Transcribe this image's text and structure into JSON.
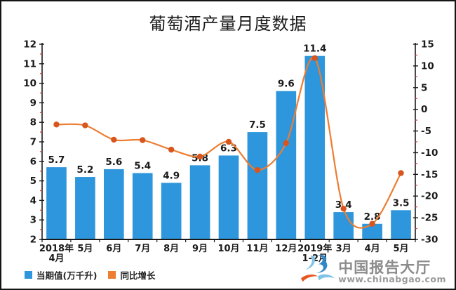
{
  "title": "葡萄酒产量月度数据",
  "legend": {
    "bar_label": "当期值(万千升)",
    "line_label": "同比增长"
  },
  "watermark": {
    "brand": "中国报告大厅",
    "url": "www.chinabgao.com"
  },
  "colors": {
    "bar": "#2E96DC",
    "line": "#ED7D31",
    "marker": "#D8551D",
    "axis": "#1a1a1a",
    "minor_tick": "#E04040",
    "text": "#1a1a1a",
    "watermark_gray": "#8c8c8c",
    "logo_blue_dark": "#2F88C9",
    "logo_blue_light": "#7FC4E6",
    "logo_orange": "#E8561E"
  },
  "chart_data": {
    "type": "bar+line combo",
    "title": "葡萄酒产量月度数据",
    "categories": [
      [
        "2018年",
        "4月"
      ],
      [
        "5月"
      ],
      [
        "6月"
      ],
      [
        "7月"
      ],
      [
        "8月"
      ],
      [
        "9月"
      ],
      [
        "10月"
      ],
      [
        "11月"
      ],
      [
        "12月"
      ],
      [
        "2019年",
        "1-2月"
      ],
      [
        "3月"
      ],
      [
        "4月"
      ],
      [
        "5月"
      ]
    ],
    "series": [
      {
        "name": "当期值(万千升)",
        "type": "bar",
        "axis": "left",
        "values": [
          5.7,
          5.2,
          5.6,
          5.4,
          4.9,
          5.8,
          6.3,
          7.5,
          9.6,
          11.4,
          3.4,
          2.8,
          3.5
        ]
      },
      {
        "name": "同比增长",
        "type": "line",
        "axis": "right",
        "values": [
          -3.5,
          -3.7,
          -7.0,
          -7.1,
          -9.3,
          -10.9,
          -7.5,
          -14.0,
          -7.8,
          11.8,
          -22.9,
          -26.4,
          -14.7
        ]
      }
    ],
    "bar_data_labels": [
      "5.7",
      "5.2",
      "5.6",
      "5.4",
      "4.9",
      "5.8",
      "6.3",
      "7.5",
      "9.6",
      "11.4",
      "3.4",
      "2.8",
      "3.5"
    ],
    "left_axis": {
      "min": 2,
      "max": 12,
      "major_step": 1,
      "minor_step": 0.5,
      "tick_labels": [
        "2",
        "3",
        "4",
        "5",
        "6",
        "7",
        "8",
        "9",
        "10",
        "11",
        "12"
      ]
    },
    "right_axis": {
      "min": -30,
      "max": 15,
      "major_step": 5,
      "minor_step": 2.5,
      "tick_labels": [
        "-30",
        "-25",
        "-20",
        "-15",
        "-10",
        "-5",
        "0",
        "5",
        "10",
        "15"
      ]
    },
    "grid": false,
    "legend_position": "bottom-left"
  }
}
